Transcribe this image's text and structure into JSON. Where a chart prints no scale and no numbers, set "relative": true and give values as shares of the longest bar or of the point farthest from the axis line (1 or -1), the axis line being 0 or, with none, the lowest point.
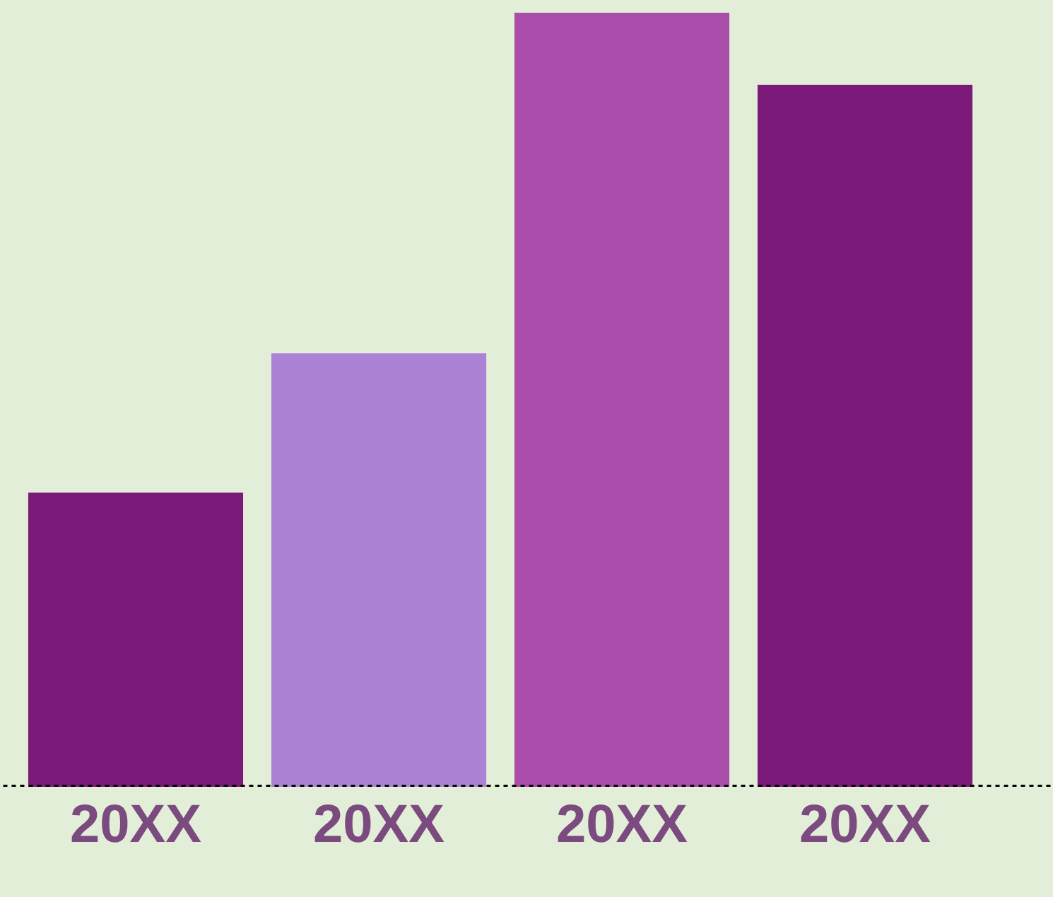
{
  "chart_data": {
    "type": "bar",
    "relative": true,
    "categories": [
      "20XX",
      "20XX",
      "20XX",
      "20XX"
    ],
    "values": [
      0.38,
      0.56,
      1,
      0.907
    ],
    "colors": [
      "#7b1a78",
      "#ab82d6",
      "#a94caa",
      "#7b1a78"
    ]
  }
}
